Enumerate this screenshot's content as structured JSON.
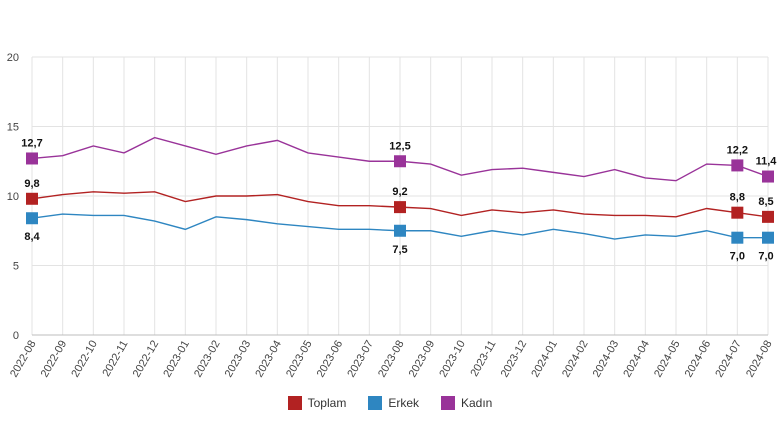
{
  "chart_data": {
    "type": "line",
    "x": [
      "2022-08",
      "2022-09",
      "2022-10",
      "2022-11",
      "2022-12",
      "2023-01",
      "2023-02",
      "2023-03",
      "2023-04",
      "2023-05",
      "2023-06",
      "2023-07",
      "2023-08",
      "2023-09",
      "2023-10",
      "2023-11",
      "2023-12",
      "2024-01",
      "2024-02",
      "2024-03",
      "2024-04",
      "2024-05",
      "2024-06",
      "2024-07",
      "2024-08"
    ],
    "ylim": [
      0,
      20
    ],
    "yticks": [
      0,
      5,
      10,
      15,
      20
    ],
    "grid": true,
    "legend": "bottom-center",
    "series": [
      {
        "name": "Toplam",
        "color": "#b22222",
        "values": [
          9.8,
          10.1,
          10.3,
          10.2,
          10.3,
          9.6,
          10.0,
          10.0,
          10.1,
          9.6,
          9.3,
          9.3,
          9.2,
          9.1,
          8.6,
          9.0,
          8.8,
          9.0,
          8.7,
          8.6,
          8.6,
          8.5,
          9.1,
          8.8,
          8.5
        ],
        "labeled": [
          {
            "index": 0,
            "text": "9,8"
          },
          {
            "index": 12,
            "text": "9,2"
          },
          {
            "index": 23,
            "text": "8,8"
          },
          {
            "index": 24,
            "text": "8,5"
          }
        ]
      },
      {
        "name": "Erkek",
        "color": "#2e86c1",
        "values": [
          8.4,
          8.7,
          8.6,
          8.6,
          8.2,
          7.6,
          8.5,
          8.3,
          8.0,
          7.8,
          7.6,
          7.6,
          7.5,
          7.5,
          7.1,
          7.5,
          7.2,
          7.6,
          7.3,
          6.9,
          7.2,
          7.1,
          7.5,
          7.0,
          7.0
        ],
        "labeled": [
          {
            "index": 0,
            "text": "8,4"
          },
          {
            "index": 12,
            "text": "7,5"
          },
          {
            "index": 23,
            "text": "7,0"
          },
          {
            "index": 24,
            "text": "7,0"
          }
        ]
      },
      {
        "name": "Kadın",
        "color": "#993399",
        "values": [
          12.7,
          12.9,
          13.6,
          13.1,
          14.2,
          13.6,
          13.0,
          13.6,
          14.0,
          13.1,
          12.8,
          12.5,
          12.5,
          12.3,
          11.5,
          11.9,
          12.0,
          11.7,
          11.4,
          11.9,
          11.3,
          11.1,
          12.3,
          12.2,
          11.4
        ],
        "labeled": [
          {
            "index": 0,
            "text": "12,7"
          },
          {
            "index": 12,
            "text": "12,5"
          },
          {
            "index": 23,
            "text": "12,2"
          },
          {
            "index": 24,
            "text": "11,4"
          }
        ]
      }
    ]
  }
}
